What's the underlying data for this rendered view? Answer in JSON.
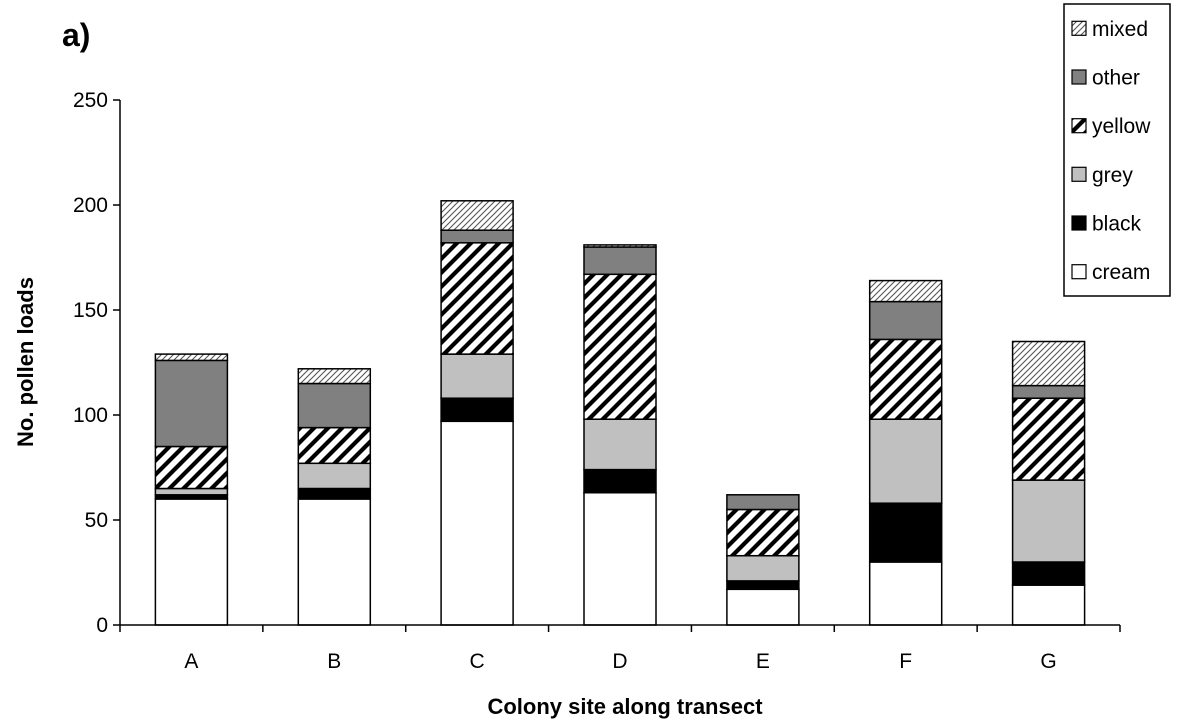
{
  "panel_label": "a)",
  "chart_data": {
    "type": "bar",
    "stacked": true,
    "title": "",
    "xlabel": "Colony site along transect",
    "ylabel": "No. pollen loads",
    "ylim": [
      0,
      250
    ],
    "yticks": [
      0,
      50,
      100,
      150,
      200,
      250
    ],
    "grid": false,
    "legend_position": "top-right",
    "categories": [
      "A",
      "B",
      "C",
      "D",
      "E",
      "F",
      "G"
    ],
    "series": [
      {
        "name": "cream",
        "fill": "white",
        "values": [
          60,
          60,
          97,
          63,
          17,
          30,
          19
        ]
      },
      {
        "name": "black",
        "fill": "black",
        "values": [
          2,
          5,
          11,
          11,
          4,
          28,
          11
        ]
      },
      {
        "name": "grey",
        "fill": "light-grey",
        "values": [
          3,
          12,
          21,
          24,
          12,
          40,
          39
        ]
      },
      {
        "name": "yellow",
        "fill": "wide-hatch",
        "values": [
          20,
          17,
          53,
          69,
          22,
          38,
          39
        ]
      },
      {
        "name": "other",
        "fill": "dark-grey",
        "values": [
          41,
          21,
          6,
          13,
          7,
          18,
          6
        ]
      },
      {
        "name": "mixed",
        "fill": "fine-hatch",
        "values": [
          3,
          7,
          14,
          1,
          0,
          10,
          21
        ]
      }
    ],
    "legend_order": [
      "mixed",
      "other",
      "yellow",
      "grey",
      "black",
      "cream"
    ]
  }
}
